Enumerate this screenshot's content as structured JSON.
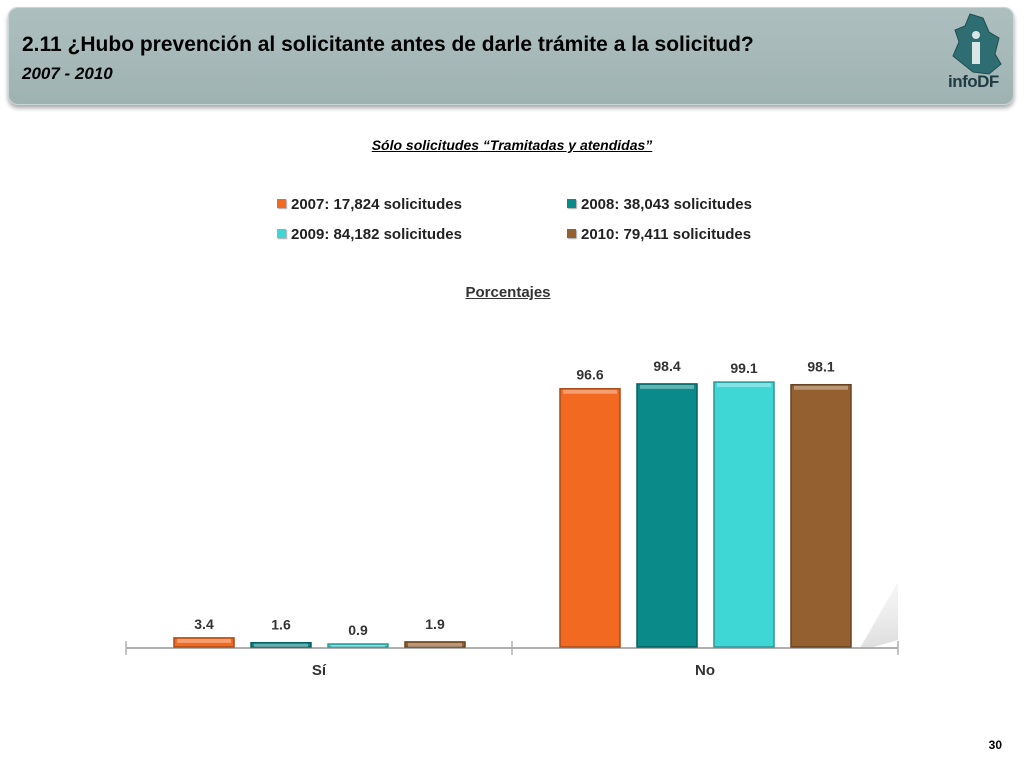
{
  "header": {
    "title": "2.11 ¿Hubo prevención al solicitante antes de darle trámite a la solicitud?",
    "subtitle": "2007 - 2010",
    "logo_text": "infoDF"
  },
  "note": "Sólo solicitudes “Tramitadas y atendidas”",
  "page_number": "30",
  "chart_data": {
    "type": "bar",
    "title": "Porcentajes",
    "categories": [
      "Sí",
      "No"
    ],
    "series": [
      {
        "name": "2007: 17,824 solicitudes",
        "color": "#f26a22",
        "values": [
          3.4,
          96.6
        ]
      },
      {
        "name": "2008: 38,043 solicitudes",
        "color": "#0b8a8a",
        "values": [
          1.6,
          98.4
        ]
      },
      {
        "name": "2009: 84,182 solicitudes",
        "color": "#3fd6d6",
        "values": [
          0.9,
          99.1
        ]
      },
      {
        "name": "2010: 79,411 solicitudes",
        "color": "#94602f",
        "values": [
          1.9,
          98.1
        ]
      }
    ],
    "value_labels": [
      [
        "3.4",
        "96.6"
      ],
      [
        "1.6",
        "98.4"
      ],
      [
        "0.9",
        "99.1"
      ],
      [
        "1.9",
        "98.1"
      ]
    ],
    "ylim": [
      0,
      100
    ],
    "legend_position": "top",
    "grid": false
  }
}
